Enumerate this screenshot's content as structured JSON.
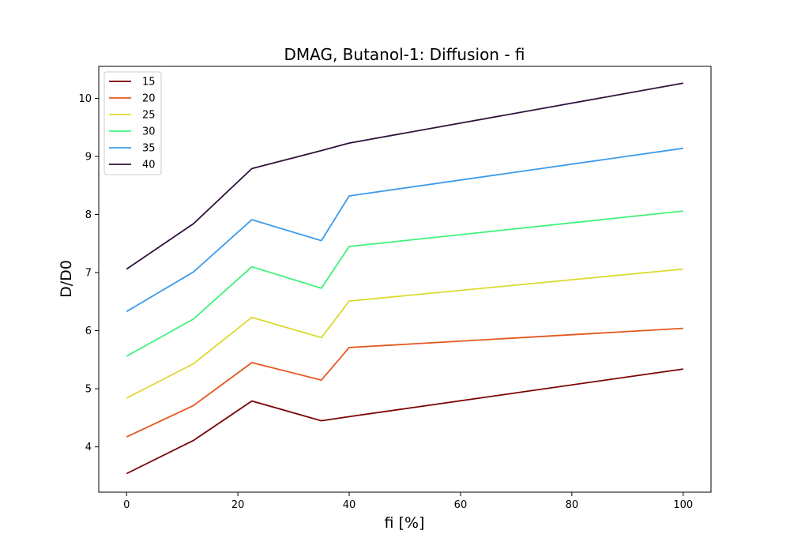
{
  "chart_data": {
    "type": "line",
    "title": "DMAG, Butanol-1: Diffusion - fi",
    "xlabel": "fi [%]",
    "ylabel": "D/D0",
    "xlim": [
      -5,
      105
    ],
    "ylim": [
      3.22,
      10.55
    ],
    "xticks": [
      0,
      20,
      40,
      60,
      80,
      100
    ],
    "yticks": [
      4,
      5,
      6,
      7,
      8,
      9,
      10
    ],
    "xtick_labels": [
      "0",
      "20",
      "40",
      "60",
      "80",
      "100"
    ],
    "ytick_labels": [
      "4",
      "5",
      "6",
      "7",
      "8",
      "9",
      "10"
    ],
    "grid": false,
    "legend": "upper-left",
    "x": [
      0,
      12,
      22.5,
      35,
      40,
      100
    ],
    "series": [
      {
        "name": "15",
        "color": "#7a0403",
        "values": [
          3.54,
          4.11,
          4.79,
          4.45,
          4.52,
          5.34
        ]
      },
      {
        "name": "20",
        "color": "#e4571c",
        "values": [
          4.17,
          4.71,
          5.45,
          5.15,
          5.71,
          6.04
        ]
      },
      {
        "name": "25",
        "color": "#dcd930",
        "values": [
          4.84,
          5.43,
          6.23,
          5.88,
          6.51,
          7.06
        ]
      },
      {
        "name": "30",
        "color": "#3ef27a",
        "values": [
          5.56,
          6.2,
          7.1,
          6.73,
          7.45,
          8.06
        ]
      },
      {
        "name": "35",
        "color": "#3d9bea",
        "values": [
          6.33,
          7.01,
          7.91,
          7.55,
          8.32,
          9.14
        ]
      },
      {
        "name": "40",
        "color": "#30123b",
        "values": [
          7.06,
          7.84,
          8.79,
          9.1,
          9.23,
          10.26
        ]
      }
    ]
  }
}
